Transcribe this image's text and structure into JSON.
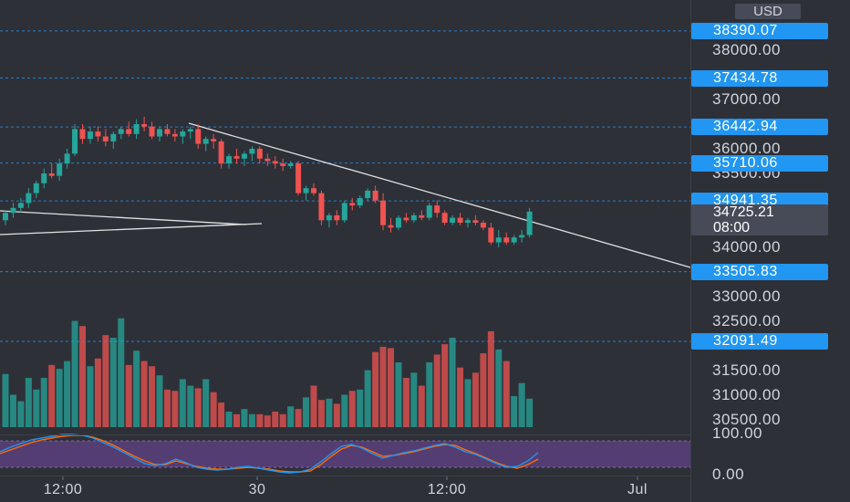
{
  "currency": "USD",
  "price_axis": {
    "labels": [
      "38000.00",
      "37000.00",
      "36000.00",
      "35500.00",
      "34000.00",
      "33000.00",
      "32500.00",
      "31500.00",
      "31000.00",
      "30500.00"
    ],
    "label_values": [
      38000,
      37000,
      36000,
      35500,
      34000,
      33000,
      32500,
      31500,
      31000,
      30500
    ]
  },
  "alert_lines": [
    {
      "label": "38390.07",
      "value": 38390.07
    },
    {
      "label": "37434.78",
      "value": 37434.78
    },
    {
      "label": "36442.94",
      "value": 36442.94
    },
    {
      "label": "35710.06",
      "value": 35710.06
    },
    {
      "label": "34941.35",
      "value": 34941.35
    },
    {
      "label": "33505.83",
      "value": 33505.83
    },
    {
      "label": "32091.49",
      "value": 32091.49
    }
  ],
  "current_price": {
    "price": "34725.21",
    "countdown": "08:00"
  },
  "rsi_axis": {
    "top": "100.00",
    "bottom": "0.00"
  },
  "time_axis": {
    "labels": [
      "12:00",
      "30",
      "12:00",
      "Jul"
    ]
  },
  "colors": {
    "up": "#26a69a",
    "down": "#ef5350",
    "alert": "#2196f3",
    "rsi_band": "#5b3f7e",
    "rsi_line1": "#2196f3",
    "rsi_line2": "#ff6d00"
  },
  "chart_data": {
    "type": "candlestick",
    "candles": [
      [
        34550,
        34750,
        34450,
        34700
      ],
      [
        34700,
        34900,
        34600,
        34800
      ],
      [
        34800,
        35000,
        34700,
        34900
      ],
      [
        34900,
        35200,
        34800,
        35100
      ],
      [
        35100,
        35350,
        35000,
        35300
      ],
      [
        35300,
        35600,
        35200,
        35500
      ],
      [
        35500,
        35700,
        35400,
        35450
      ],
      [
        35450,
        35800,
        35350,
        35700
      ],
      [
        35700,
        36000,
        35600,
        35900
      ],
      [
        35900,
        36500,
        35850,
        36400
      ],
      [
        36400,
        36500,
        36100,
        36200
      ],
      [
        36200,
        36450,
        36100,
        36350
      ],
      [
        36350,
        36450,
        36150,
        36250
      ],
      [
        36250,
        36400,
        36050,
        36150
      ],
      [
        36150,
        36350,
        36000,
        36300
      ],
      [
        36300,
        36450,
        36200,
        36400
      ],
      [
        36400,
        36550,
        36250,
        36300
      ],
      [
        36300,
        36600,
        36200,
        36500
      ],
      [
        36500,
        36650,
        36350,
        36450
      ],
      [
        36450,
        36550,
        36200,
        36250
      ],
      [
        36250,
        36450,
        36150,
        36400
      ],
      [
        36400,
        36500,
        36250,
        36300
      ],
      [
        36300,
        36400,
        36150,
        36250
      ],
      [
        36250,
        36400,
        36100,
        36350
      ],
      [
        36350,
        36450,
        36200,
        36400
      ],
      [
        36400,
        36500,
        36000,
        36100
      ],
      [
        36100,
        36250,
        35950,
        36200
      ],
      [
        36200,
        36300,
        36000,
        36150
      ],
      [
        36150,
        36200,
        35600,
        35700
      ],
      [
        35700,
        35900,
        35600,
        35850
      ],
      [
        35850,
        36000,
        35700,
        35800
      ],
      [
        35800,
        35950,
        35650,
        35900
      ],
      [
        35900,
        36050,
        35750,
        36000
      ],
      [
        36000,
        36050,
        35700,
        35800
      ],
      [
        35800,
        35900,
        35650,
        35750
      ],
      [
        35750,
        35850,
        35600,
        35700
      ],
      [
        35700,
        35800,
        35550,
        35650
      ],
      [
        35650,
        35750,
        35600,
        35700
      ],
      [
        35700,
        35750,
        35050,
        35100
      ],
      [
        35100,
        35250,
        34950,
        35200
      ],
      [
        35200,
        35300,
        35050,
        35100
      ],
      [
        35100,
        35150,
        34450,
        34550
      ],
      [
        34550,
        34700,
        34400,
        34650
      ],
      [
        34650,
        34750,
        34450,
        34550
      ],
      [
        34550,
        34950,
        34500,
        34900
      ],
      [
        34900,
        35000,
        34750,
        34850
      ],
      [
        34850,
        35050,
        34800,
        35000
      ],
      [
        35000,
        35200,
        34950,
        35150
      ],
      [
        35150,
        35250,
        34900,
        34950
      ],
      [
        34950,
        35100,
        34350,
        34450
      ],
      [
        34450,
        34600,
        34300,
        34400
      ],
      [
        34400,
        34650,
        34350,
        34600
      ],
      [
        34600,
        34700,
        34500,
        34550
      ],
      [
        34550,
        34700,
        34500,
        34650
      ],
      [
        34650,
        34750,
        34550,
        34600
      ],
      [
        34600,
        34900,
        34550,
        34850
      ],
      [
        34850,
        34950,
        34600,
        34700
      ],
      [
        34700,
        34750,
        34450,
        34500
      ],
      [
        34500,
        34650,
        34450,
        34600
      ],
      [
        34600,
        34700,
        34450,
        34500
      ],
      [
        34500,
        34600,
        34400,
        34550
      ],
      [
        34550,
        34650,
        34450,
        34500
      ],
      [
        34500,
        34550,
        34350,
        34400
      ],
      [
        34400,
        34500,
        34050,
        34100
      ],
      [
        34100,
        34350,
        34000,
        34200
      ],
      [
        34200,
        34300,
        34050,
        34100
      ],
      [
        34100,
        34250,
        34050,
        34200
      ],
      [
        34200,
        34350,
        34100,
        34250
      ],
      [
        34250,
        34800,
        34200,
        34725.21
      ]
    ],
    "volume": [
      41,
      25,
      20,
      38,
      29,
      38,
      48,
      45,
      51,
      82,
      78,
      47,
      53,
      71,
      69,
      84,
      48,
      59,
      51,
      47,
      40,
      29,
      28,
      37,
      32,
      30,
      37,
      27,
      19,
      12,
      10,
      14,
      10,
      10,
      9,
      12,
      10,
      16,
      14,
      23,
      32,
      21,
      22,
      18,
      25,
      28,
      29,
      44,
      58,
      62,
      61,
      50,
      38,
      42,
      32,
      50,
      56,
      64,
      69,
      46,
      37,
      42,
      57,
      74,
      60,
      51,
      24,
      34,
      22
    ],
    "rsi": {
      "top": 100,
      "bottom": 0
    }
  }
}
